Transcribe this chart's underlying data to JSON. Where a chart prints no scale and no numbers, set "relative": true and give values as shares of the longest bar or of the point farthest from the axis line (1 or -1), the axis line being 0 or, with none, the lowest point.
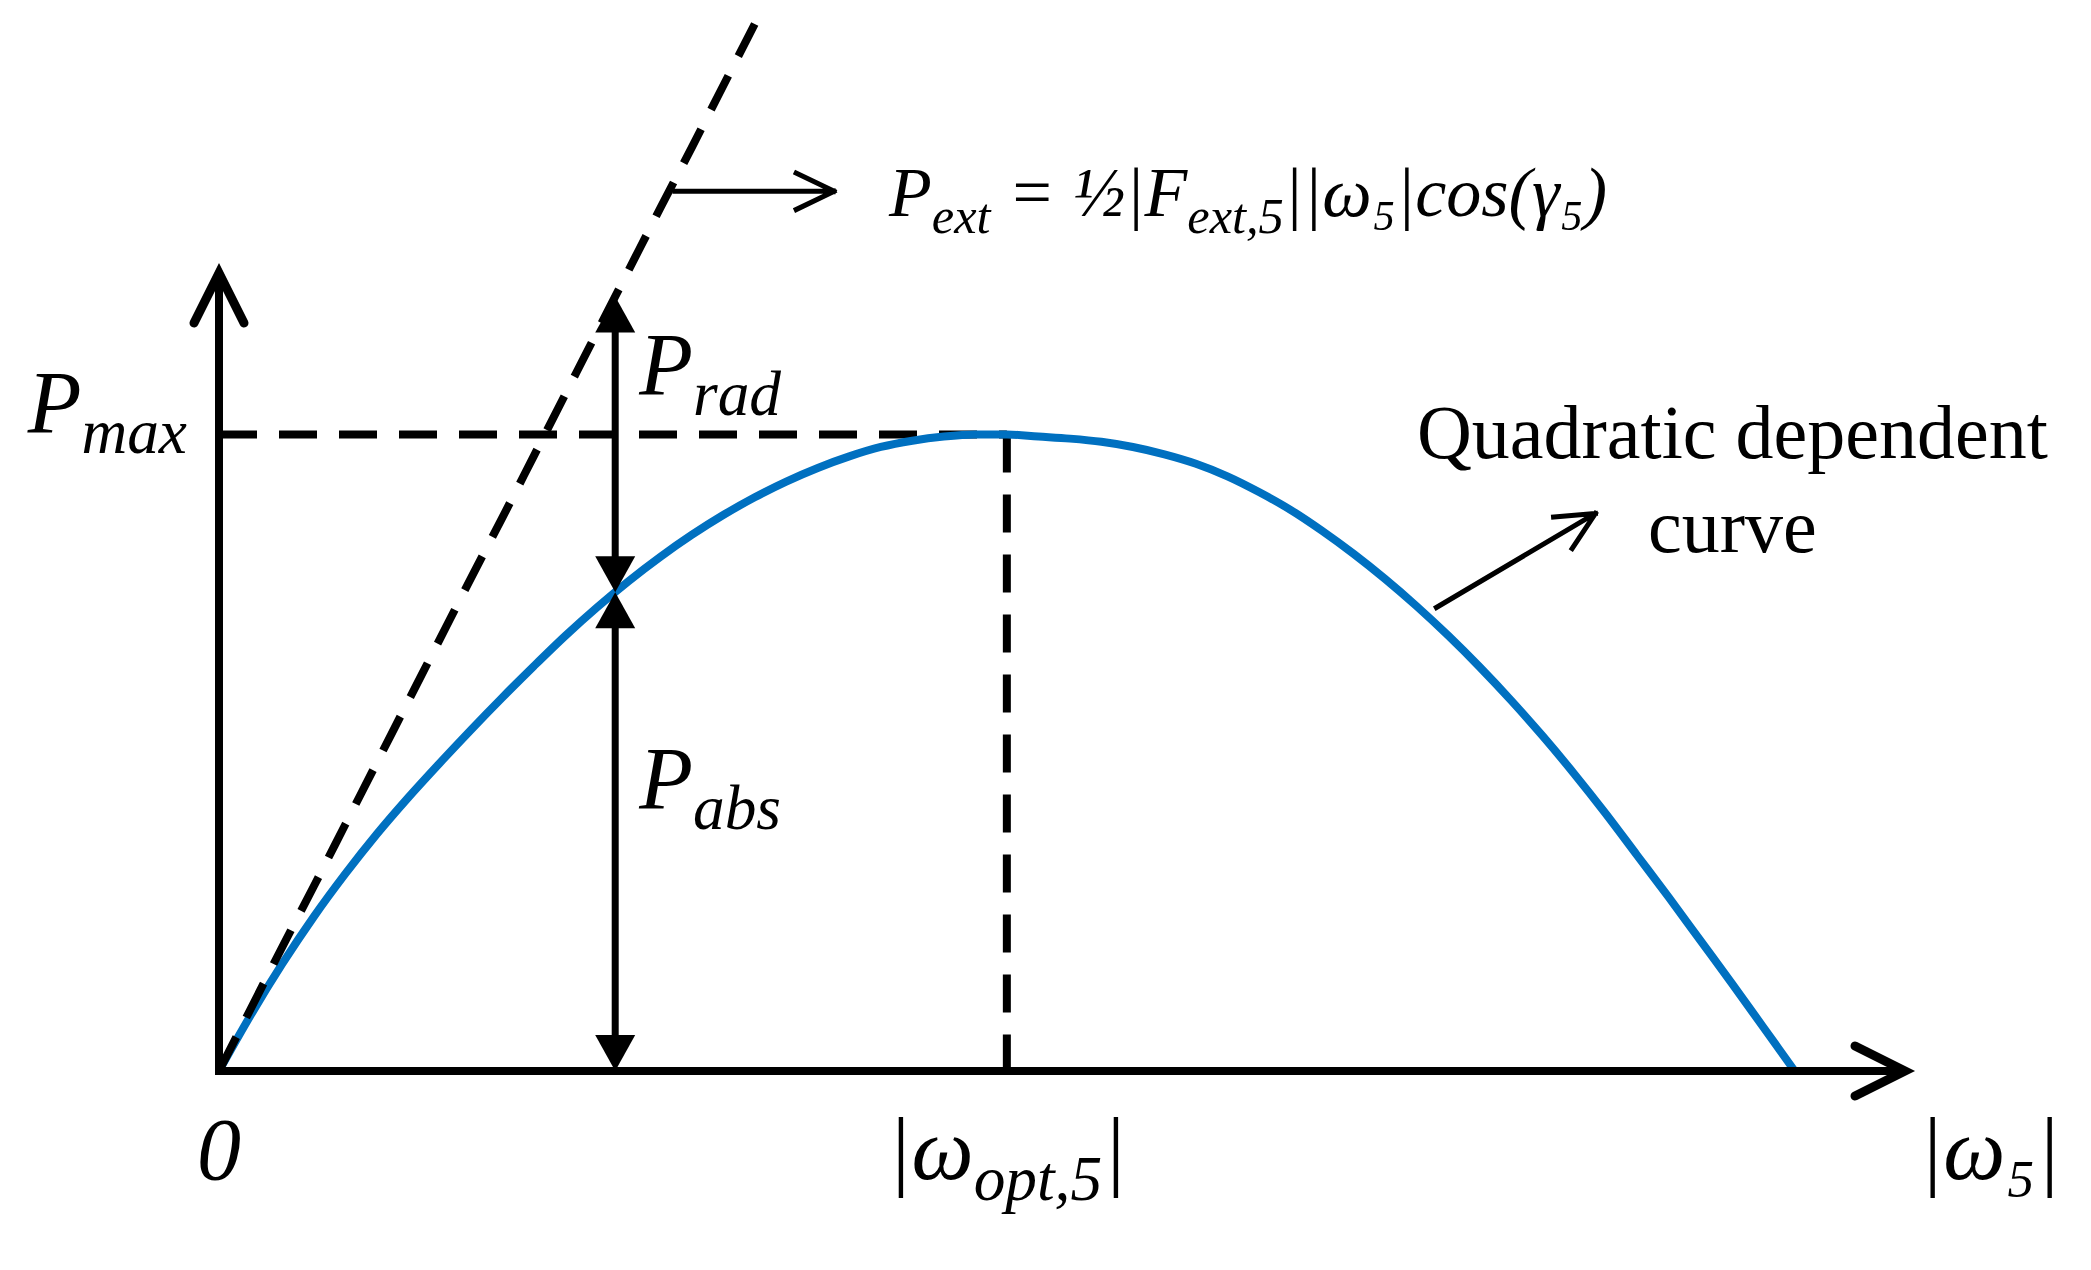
{
  "chart_data": {
    "type": "line",
    "relative": true,
    "xlabel": "|ω₅|",
    "tick_labels": "x",
    "categories": [
      "0",
      null,
      null,
      null,
      null,
      null,
      null,
      null,
      null,
      null,
      null,
      null,
      null,
      null,
      null,
      null,
      null,
      null,
      null,
      null,
      null,
      null,
      null,
      null,
      null,
      "|ω$_{opt,5}$|",
      null,
      null,
      null,
      null,
      null,
      null,
      null,
      null,
      null,
      null,
      null,
      null,
      null,
      null,
      null,
      null,
      null,
      null,
      null,
      null,
      null,
      null,
      null,
      null,
      null,
      null,
      null,
      null
    ],
    "series": [
      {
        "name": "Quadratic dependent curve",
        "color": "#0070c0",
        "values": [
          0,
          0.053,
          0.102,
          0.147,
          0.188,
          0.226,
          0.261,
          0.294,
          0.326,
          0.357,
          0.387,
          0.416,
          0.443,
          0.468,
          0.491,
          0.512,
          0.531,
          0.548,
          0.563,
          0.576,
          0.587,
          0.596,
          0.602,
          0.606,
          0.608,
          0.608,
          0.606,
          0.604,
          0.601,
          0.596,
          0.589,
          0.58,
          0.568,
          0.553,
          0.536,
          0.516,
          0.494,
          0.47,
          0.444,
          0.416,
          0.386,
          0.354,
          0.32,
          0.284,
          0.246,
          0.206,
          0.166,
          0.125,
          0.084,
          0.042,
          0,
          null,
          null,
          null
        ]
      },
      {
        "name": "P$_{ext}$ = ½|F$_{ext,5}$||ω₅|cos(γ₅)",
        "color": "#000000",
        "line_style": "dashed",
        "values": [
          0,
          0.059,
          0.118,
          0.176,
          0.235,
          0.294,
          0.353,
          0.412,
          0.471,
          0.529,
          0.588,
          0.647,
          0.706,
          0.765,
          0.824,
          0.882,
          0.941,
          1,
          null,
          null,
          null,
          null,
          null,
          null,
          null,
          null,
          null,
          null,
          null,
          null,
          null,
          null,
          null,
          null,
          null,
          null,
          null,
          null,
          null,
          null,
          null,
          null,
          null,
          null,
          null,
          null,
          null,
          null,
          null,
          null,
          null,
          null,
          null,
          null
        ]
      }
    ],
    "ref_lines": [
      {
        "axis": "y",
        "value": 0.608,
        "label": "P$_{max}$",
        "color": "#000000",
        "line_style": "dashed"
      },
      {
        "axis": "x",
        "value": "|ω$_{opt,5}$|",
        "color": "#000000",
        "line_style": "dashed"
      }
    ],
    "annotations": [
      "P$_{rad}$",
      "P$_{abs}$"
    ]
  }
}
